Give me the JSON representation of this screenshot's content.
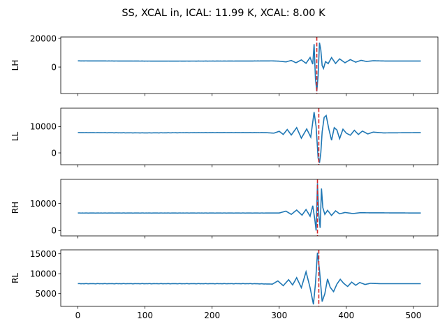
{
  "chart_data": {
    "type": "line",
    "title": "SS, XCAL in, ICAL: 11.99 K, XCAL: 8.00 K",
    "x_ticks": [
      0,
      100,
      200,
      300,
      400,
      500
    ],
    "xlim": [
      -25.5,
      536.5
    ],
    "line_color": "#1f77b4",
    "marker_color": "#d62728",
    "panels": [
      {
        "ylabel": "LH",
        "ylim": [
          -18500,
          21000
        ],
        "y_ticks": [
          0,
          20000
        ],
        "baseline": 4200,
        "marker_x": 356,
        "anchors": [
          [
            0,
            4300
          ],
          [
            120,
            4150
          ],
          [
            250,
            4200
          ],
          [
            290,
            4300
          ],
          [
            300,
            4100
          ],
          [
            310,
            3600
          ],
          [
            318,
            4600
          ],
          [
            325,
            3000
          ],
          [
            333,
            5000
          ],
          [
            340,
            2600
          ],
          [
            346,
            6700
          ],
          [
            350,
            2000
          ],
          [
            352,
            16000
          ],
          [
            354,
            -8000
          ],
          [
            356,
            -17000
          ],
          [
            358,
            -6000
          ],
          [
            360,
            17000
          ],
          [
            362,
            12000
          ],
          [
            364,
            1000
          ],
          [
            366,
            -1000
          ],
          [
            369,
            3800
          ],
          [
            373,
            2400
          ],
          [
            378,
            6600
          ],
          [
            384,
            2500
          ],
          [
            390,
            5700
          ],
          [
            398,
            3000
          ],
          [
            406,
            5200
          ],
          [
            414,
            3400
          ],
          [
            422,
            4700
          ],
          [
            430,
            3900
          ],
          [
            440,
            4400
          ],
          [
            460,
            4200
          ],
          [
            511,
            4200
          ]
        ]
      },
      {
        "ylabel": "LL",
        "ylim": [
          -4500,
          17000
        ],
        "y_ticks": [
          0,
          10000
        ],
        "baseline": 7600,
        "marker_x": 359,
        "anchors": [
          [
            0,
            7700
          ],
          [
            100,
            7600
          ],
          [
            200,
            7700
          ],
          [
            280,
            7700
          ],
          [
            292,
            7500
          ],
          [
            300,
            8200
          ],
          [
            306,
            7000
          ],
          [
            312,
            8900
          ],
          [
            318,
            6800
          ],
          [
            326,
            9600
          ],
          [
            333,
            5600
          ],
          [
            341,
            9100
          ],
          [
            347,
            6000
          ],
          [
            352,
            15500
          ],
          [
            355,
            10000
          ],
          [
            358,
            -2000
          ],
          [
            360,
            -3800
          ],
          [
            362,
            0
          ],
          [
            364,
            8000
          ],
          [
            367,
            13500
          ],
          [
            370,
            14200
          ],
          [
            374,
            9000
          ],
          [
            378,
            4800
          ],
          [
            382,
            9600
          ],
          [
            386,
            8700
          ],
          [
            390,
            5400
          ],
          [
            395,
            9000
          ],
          [
            400,
            7500
          ],
          [
            406,
            6700
          ],
          [
            412,
            8600
          ],
          [
            418,
            7000
          ],
          [
            424,
            8300
          ],
          [
            432,
            7200
          ],
          [
            440,
            7900
          ],
          [
            455,
            7600
          ],
          [
            511,
            7700
          ]
        ]
      },
      {
        "ylabel": "RH",
        "ylim": [
          -2000,
          19000
        ],
        "y_ticks": [
          0,
          10000
        ],
        "baseline": 6500,
        "marker_x": 357,
        "anchors": [
          [
            0,
            6500
          ],
          [
            300,
            6500
          ],
          [
            310,
            7200
          ],
          [
            318,
            6000
          ],
          [
            326,
            7600
          ],
          [
            334,
            5700
          ],
          [
            340,
            7800
          ],
          [
            346,
            5300
          ],
          [
            350,
            9200
          ],
          [
            353,
            4200
          ],
          [
            355,
            0
          ],
          [
            357,
            17500
          ],
          [
            359,
            6000
          ],
          [
            361,
            1000
          ],
          [
            363,
            15600
          ],
          [
            365,
            8500
          ],
          [
            368,
            6000
          ],
          [
            372,
            7500
          ],
          [
            378,
            5600
          ],
          [
            384,
            7300
          ],
          [
            390,
            6200
          ],
          [
            398,
            6700
          ],
          [
            410,
            6300
          ],
          [
            420,
            6600
          ],
          [
            511,
            6500
          ]
        ]
      },
      {
        "ylabel": "RL",
        "ylim": [
          1800,
          16000
        ],
        "y_ticks": [
          5000,
          10000,
          15000
        ],
        "baseline": 7500,
        "marker_x": 359,
        "anchors": [
          [
            0,
            7500
          ],
          [
            260,
            7500
          ],
          [
            290,
            7400
          ],
          [
            298,
            8200
          ],
          [
            306,
            7000
          ],
          [
            314,
            8500
          ],
          [
            320,
            7200
          ],
          [
            326,
            9000
          ],
          [
            333,
            6500
          ],
          [
            340,
            10500
          ],
          [
            346,
            6500
          ],
          [
            351,
            2300
          ],
          [
            354,
            7500
          ],
          [
            357,
            15300
          ],
          [
            360,
            11000
          ],
          [
            364,
            3000
          ],
          [
            368,
            5000
          ],
          [
            372,
            8700
          ],
          [
            376,
            6600
          ],
          [
            381,
            5500
          ],
          [
            386,
            7400
          ],
          [
            391,
            8600
          ],
          [
            396,
            7600
          ],
          [
            402,
            6800
          ],
          [
            408,
            7900
          ],
          [
            414,
            7100
          ],
          [
            420,
            7800
          ],
          [
            428,
            7300
          ],
          [
            436,
            7600
          ],
          [
            450,
            7500
          ],
          [
            511,
            7500
          ]
        ]
      }
    ]
  }
}
